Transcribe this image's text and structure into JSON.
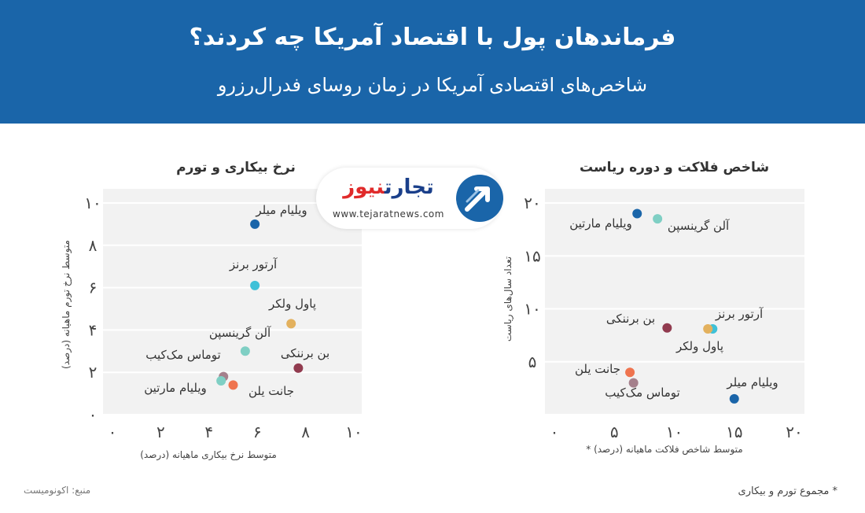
{
  "header": {
    "title": "فرماندهان پول با اقتصاد آمریکا چه کردند؟",
    "subtitle": "شاخص‌های اقتصادی آمریکا در زمان روسای فدرال‌رزرو"
  },
  "logo": {
    "name_main": "تجارت",
    "name_accent": "نیوز",
    "url": "www.tejaratnews.com"
  },
  "source": "منبع: اکونومیست",
  "footnote": "* مجموع تورم و بیکاری",
  "colors": {
    "header_bg": "#1a65a9",
    "plot_bg": "#f2f2f2",
    "grid": "#ffffff"
  },
  "chart_data": [
    {
      "type": "scatter",
      "title": "نرخ بیکاری و تورم",
      "xlabel": "متوسط نرخ بیکاری ماهیانه (درصد)",
      "ylabel": "متوسط نرخ تورم ماهیانه (درصد)",
      "xlim": [
        0,
        10
      ],
      "ylim": [
        0,
        10
      ],
      "xticks": [
        0,
        2,
        4,
        6,
        8,
        10
      ],
      "yticks": [
        0,
        2,
        4,
        6,
        8,
        10
      ],
      "xtick_labels": [
        "۰",
        "۲",
        "۴",
        "۶",
        "۸",
        "۱۰"
      ],
      "ytick_labels": [
        "۰",
        "۲",
        "۴",
        "۶",
        "۸",
        "۱۰"
      ],
      "grid": true,
      "points": [
        {
          "label": "ویلیام میلر",
          "x": 5.9,
          "y": 9.0,
          "color": "#1a65a9"
        },
        {
          "label": "آرتور برنز",
          "x": 5.9,
          "y": 6.1,
          "color": "#3fc1d8"
        },
        {
          "label": "پاول ولکر",
          "x": 7.4,
          "y": 4.3,
          "color": "#e3b15e"
        },
        {
          "label": "آلن گرینسپن",
          "x": 5.5,
          "y": 3.0,
          "color": "#7fcfc4"
        },
        {
          "label": "بن برننکی",
          "x": 7.7,
          "y": 2.2,
          "color": "#913b4f"
        },
        {
          "label": "توماس مک‌کیب",
          "x": 4.6,
          "y": 1.8,
          "color": "#a5808c"
        },
        {
          "label": "ویلیام مارتین",
          "x": 4.5,
          "y": 1.6,
          "color": "#7fcfc4"
        },
        {
          "label": "جانت یلن",
          "x": 5.0,
          "y": 1.4,
          "color": "#ef744f"
        }
      ]
    },
    {
      "type": "scatter",
      "title": "شاخص فلاکت و دوره ریاست",
      "xlabel": "متوسط شاخص فلاکت ماهیانه (درصد) *",
      "ylabel": "تعداد سال‌های ریاست",
      "xlim": [
        0,
        20
      ],
      "ylim": [
        0,
        20
      ],
      "xticks": [
        0,
        5,
        10,
        15,
        20
      ],
      "yticks": [
        5,
        10,
        15,
        20
      ],
      "xtick_labels": [
        "۰",
        "۵",
        "۱۰",
        "۱۵",
        "۲۰"
      ],
      "ytick_labels": [
        "۵",
        "۱۰",
        "۱۵",
        "۲۰"
      ],
      "grid": true,
      "points": [
        {
          "label": "ویلیام مارتین",
          "x": 6.9,
          "y": 19.0,
          "color": "#1a65a9"
        },
        {
          "label": "آلن گرینسپن",
          "x": 8.6,
          "y": 18.5,
          "color": "#7fcfc4"
        },
        {
          "label": "آرتور برنز",
          "x": 13.2,
          "y": 8.1,
          "color": "#3fc1d8"
        },
        {
          "label": "پاول ولکر",
          "x": 12.8,
          "y": 8.1,
          "color": "#e3b15e"
        },
        {
          "label": "بن برننکی",
          "x": 9.4,
          "y": 8.2,
          "color": "#913b4f"
        },
        {
          "label": "جانت یلن",
          "x": 6.3,
          "y": 4.0,
          "color": "#ef744f"
        },
        {
          "label": "توماس مک‌کیب",
          "x": 6.6,
          "y": 3.0,
          "color": "#a5808c"
        },
        {
          "label": "ویلیام میلر",
          "x": 15.0,
          "y": 1.5,
          "color": "#1a65a9"
        }
      ]
    }
  ]
}
